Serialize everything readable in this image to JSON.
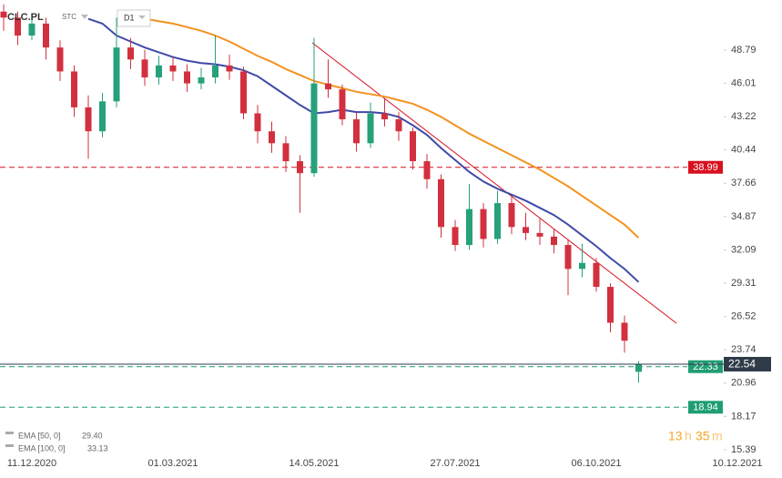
{
  "chart_data": {
    "type": "candlestick",
    "title": "CLC.PL",
    "subtitle": "STC",
    "interval": "D1",
    "categories": [
      null,
      null,
      "11.12.2020",
      null,
      null,
      null,
      null,
      null,
      null,
      null,
      null,
      null,
      "01.03.2021",
      null,
      null,
      null,
      null,
      null,
      null,
      null,
      null,
      null,
      "14.05.2021",
      null,
      null,
      null,
      null,
      null,
      null,
      null,
      null,
      null,
      "27.07.2021",
      null,
      null,
      null,
      null,
      null,
      null,
      null,
      null,
      null,
      "06.10.2021",
      null,
      null,
      null,
      null,
      null,
      null,
      null,
      null,
      null,
      "10.12.2021"
    ],
    "open": [
      52,
      51.5,
      50,
      51,
      49,
      47,
      44,
      42,
      44.5,
      49,
      48,
      46.5,
      47.5,
      47,
      46,
      46.5,
      47.5,
      47,
      43.5,
      42,
      41,
      39.5,
      38.5,
      46,
      45.5,
      43,
      41,
      43.5,
      43,
      42,
      39.5,
      38,
      34,
      32.5,
      35.5,
      33,
      36,
      34,
      33.5,
      33.2,
      32.5,
      30.5,
      31,
      29,
      26,
      21.9,
      null,
      null,
      null,
      null,
      null,
      null,
      null
    ],
    "high": [
      52.6,
      52,
      51.8,
      51.5,
      49.6,
      47.5,
      45,
      45.2,
      51.5,
      49.8,
      48.8,
      48.3,
      48.2,
      47.6,
      47.3,
      50,
      48.4,
      47.4,
      44.2,
      42.8,
      41.6,
      40,
      49.8,
      48,
      45.9,
      43.6,
      44.4,
      44.8,
      43.6,
      42.3,
      40.1,
      38.4,
      34.6,
      37.6,
      36,
      37,
      36.5,
      35.2,
      34.8,
      33.8,
      33,
      32.6,
      31.4,
      29.3,
      26.6,
      22.8,
      null,
      null,
      null,
      null,
      null,
      null,
      null
    ],
    "low": [
      50.4,
      49.2,
      49.6,
      48,
      46.2,
      43.2,
      39.7,
      41.5,
      44,
      47.2,
      45.8,
      45.9,
      46.2,
      45.3,
      45.5,
      46,
      46.3,
      43,
      41,
      40.2,
      38.6,
      35.2,
      38.2,
      44.8,
      42.5,
      40.3,
      40.6,
      42.4,
      41.2,
      38.8,
      37.2,
      33.1,
      32,
      32.1,
      32.3,
      32.6,
      33.4,
      32.9,
      32.5,
      31.8,
      28.3,
      29.8,
      28.6,
      25.2,
      23.5,
      21,
      null,
      null,
      null,
      null,
      null,
      null,
      null
    ],
    "close": [
      51.5,
      50,
      51,
      49,
      47,
      44,
      42,
      44.5,
      49,
      48,
      46.5,
      47.5,
      47,
      46,
      46.5,
      47.5,
      47,
      43.5,
      42,
      41,
      39.5,
      38.5,
      46,
      45.5,
      43,
      41,
      43.5,
      43,
      42,
      39.5,
      38,
      34,
      32.5,
      35.5,
      33,
      36,
      34,
      33.5,
      33.2,
      32.5,
      30.5,
      31,
      29,
      26,
      24.5,
      22.54,
      null,
      null,
      null,
      null,
      null,
      null,
      null
    ],
    "up_color": "#26a17b",
    "down_color": "#d2303f",
    "series": [
      {
        "name": "EMA [50, 0]",
        "color": "#3f4aa8",
        "values": [
          null,
          null,
          null,
          null,
          null,
          null,
          51.4,
          51,
          50,
          49.5,
          49,
          48.6,
          48.2,
          47.9,
          47.7,
          47.6,
          47.4,
          47.1,
          46.6,
          45.8,
          45,
          44.2,
          43.5,
          43.6,
          43.8,
          43.6,
          43.6,
          43.5,
          43.2,
          42.5,
          41.7,
          40.6,
          39.6,
          38.6,
          37.8,
          37.2,
          36.7,
          36.2,
          35.6,
          35,
          34.2,
          33.3,
          32.4,
          31.4,
          30.5,
          29.4,
          null,
          null,
          null,
          null,
          null,
          null,
          null
        ],
        "value_labels": [
          null,
          null,
          null,
          null,
          null,
          null,
          null,
          null,
          null,
          null,
          null,
          null,
          null,
          null,
          null,
          null,
          null,
          null,
          null,
          null,
          null,
          null,
          null,
          null,
          null,
          null,
          null,
          null,
          null,
          null,
          null,
          null,
          null,
          null,
          null,
          null,
          null,
          null,
          null,
          null,
          null,
          null,
          null,
          null,
          null,
          "29.40",
          null,
          null,
          null,
          null,
          null,
          null,
          null
        ]
      },
      {
        "name": "EMA [100, 0]",
        "color": "#f5921e",
        "values": [
          null,
          null,
          null,
          null,
          null,
          null,
          null,
          null,
          null,
          51.6,
          51.4,
          51.2,
          51,
          50.7,
          50.4,
          50,
          49.5,
          48.9,
          48.3,
          47.8,
          47.2,
          46.7,
          46.2,
          45.9,
          45.6,
          45.3,
          45.1,
          44.9,
          44.6,
          44.3,
          43.8,
          43.2,
          42.5,
          41.8,
          41.2,
          40.6,
          40,
          39.4,
          38.8,
          38.1,
          37.4,
          36.6,
          35.8,
          35,
          34.2,
          33.1,
          null,
          null,
          null,
          null,
          null,
          null,
          null
        ],
        "value_labels": [
          null,
          null,
          null,
          null,
          null,
          null,
          null,
          null,
          null,
          null,
          null,
          null,
          null,
          null,
          null,
          null,
          null,
          null,
          null,
          null,
          null,
          null,
          null,
          null,
          null,
          null,
          null,
          null,
          null,
          null,
          null,
          null,
          null,
          null,
          null,
          null,
          null,
          null,
          null,
          null,
          null,
          null,
          null,
          null,
          null,
          "33.13",
          null,
          null,
          null,
          null,
          null,
          null,
          null
        ]
      }
    ],
    "levels": [
      {
        "value": 38.99,
        "color": "#d7101f"
      },
      {
        "value": 22.33,
        "color": "#1f9e74"
      },
      {
        "value": 18.94,
        "color": "#1f9e74"
      }
    ],
    "last_price": 22.54,
    "last_price_color": "#2f3b48",
    "countdown": [
      "13",
      "h",
      "35",
      "m"
    ],
    "ylim": [
      14.93,
      52.97
    ],
    "yticks": [
      48.79,
      46.01,
      43.22,
      40.44,
      37.66,
      34.87,
      32.09,
      29.31,
      26.52,
      23.74,
      20.96,
      18.17,
      15.39
    ]
  }
}
